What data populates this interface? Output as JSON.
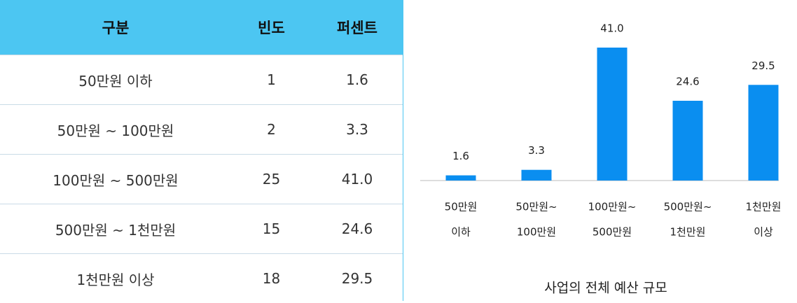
{
  "table": {
    "header": [
      "구분",
      "빈도",
      "퍼센트"
    ],
    "rows": [
      [
        "50만원 이하",
        "1",
        "1.6"
      ],
      [
        "50만원 ~ 100만원",
        "2",
        "3.3"
      ],
      [
        "100만원 ~ 500만원",
        "25",
        "41.0"
      ],
      [
        "500만원 ~ 1천만원",
        "15",
        "24.6"
      ],
      [
        "1천만원 이상",
        "18",
        "29.5"
      ]
    ]
  },
  "chart_data": {
    "type": "bar",
    "title": "사업의 전체 예산 규모",
    "categories": [
      [
        "50만원",
        "이하"
      ],
      [
        "50만원~",
        "100만원"
      ],
      [
        "100만원~",
        "500만원"
      ],
      [
        "500만원~",
        "1천만원"
      ],
      [
        "1천만원",
        "이상"
      ]
    ],
    "values": [
      1.6,
      3.3,
      41.0,
      24.6,
      29.5
    ],
    "value_labels": [
      "1.6",
      "3.3",
      "41.0",
      "24.6",
      "29.5"
    ],
    "color": "#0a8ef0"
  }
}
